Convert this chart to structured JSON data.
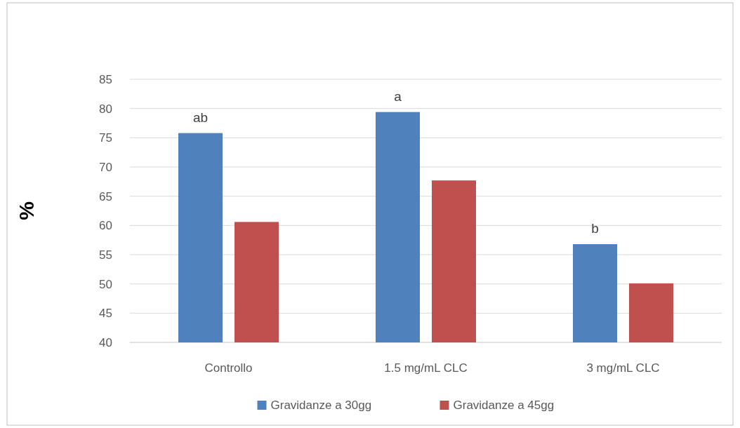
{
  "chart_data": {
    "type": "bar",
    "ylabel": "%",
    "categories": [
      "Controllo",
      "1.5 mg/mL CLC",
      "3 mg/mL CLC"
    ],
    "series": [
      {
        "name": "Gravidanze a 30gg",
        "color": "#4f81bd",
        "values": [
          75.8,
          79.4,
          56.8
        ]
      },
      {
        "name": "Gravidanze a 45gg",
        "color": "#c0504d",
        "values": [
          60.6,
          67.7,
          50.1
        ]
      }
    ],
    "ylim": [
      40,
      85
    ],
    "yticks": [
      40,
      45,
      50,
      55,
      60,
      65,
      70,
      75,
      80,
      85
    ],
    "grid": "y",
    "legend": "bottom",
    "annotations": [
      "ab",
      "a",
      "b"
    ]
  }
}
